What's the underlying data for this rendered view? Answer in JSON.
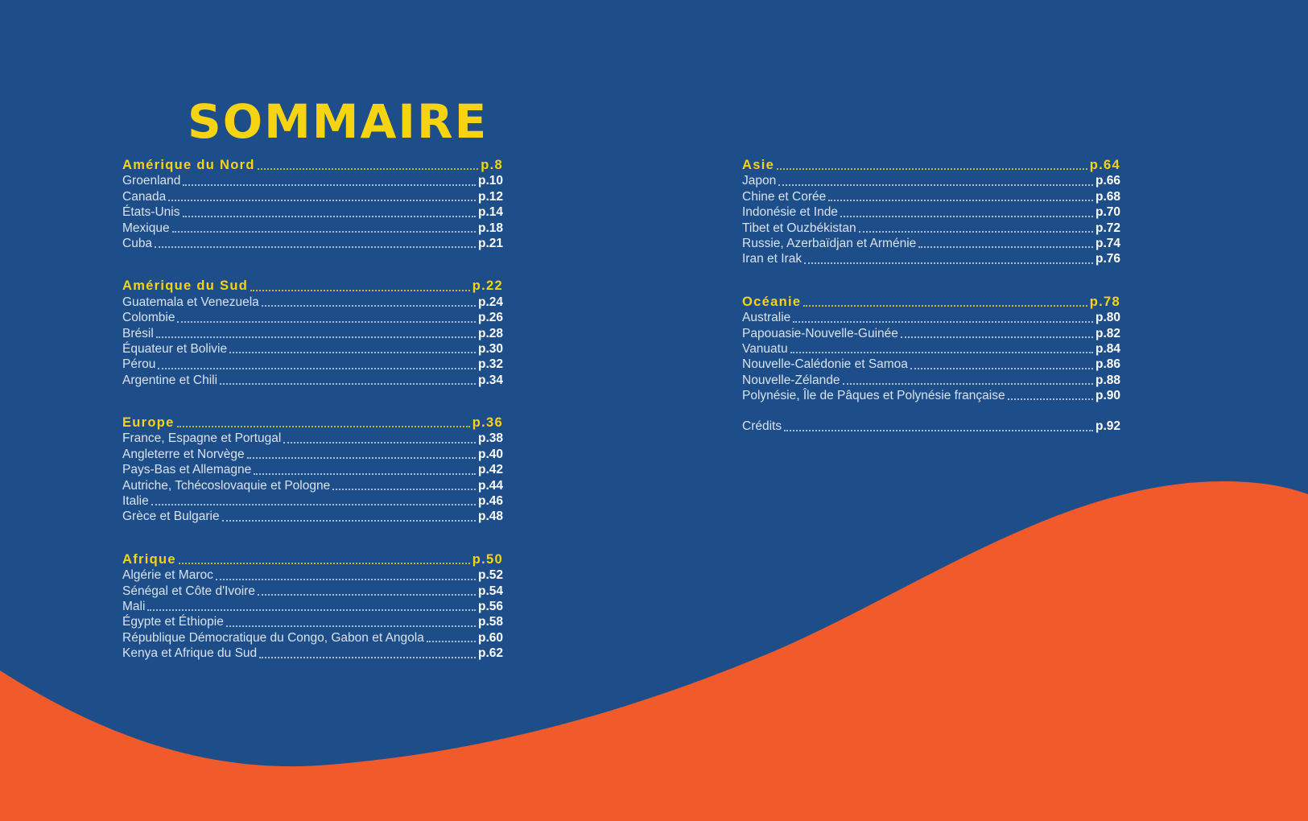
{
  "page": {
    "background_color": "#1d4e89",
    "wave_color": "#f15a2b",
    "accent_yellow": "#f7d412",
    "item_text_color": "#d9e2ee",
    "page_number_color": "#ffffff"
  },
  "title": "SOMMAIRE",
  "toc": {
    "left_sections": [
      {
        "title": "Amérique du Nord",
        "page": "p.8",
        "items": [
          {
            "label": "Groenland",
            "page": "p.10"
          },
          {
            "label": "Canada",
            "page": "p.12"
          },
          {
            "label": "États-Unis",
            "page": "p.14"
          },
          {
            "label": "Mexique",
            "page": "p.18"
          },
          {
            "label": "Cuba",
            "page": "p.21"
          }
        ]
      },
      {
        "title": "Amérique du Sud",
        "page": "p.22",
        "items": [
          {
            "label": "Guatemala et Venezuela",
            "page": "p.24"
          },
          {
            "label": "Colombie",
            "page": "p.26"
          },
          {
            "label": "Brésil",
            "page": "p.28"
          },
          {
            "label": "Équateur et Bolivie",
            "page": "p.30"
          },
          {
            "label": "Pérou",
            "page": "p.32"
          },
          {
            "label": "Argentine et Chili",
            "page": "p.34"
          }
        ]
      },
      {
        "title": "Europe",
        "page": "p.36",
        "items": [
          {
            "label": "France, Espagne et Portugal",
            "page": "p.38"
          },
          {
            "label": "Angleterre et Norvège",
            "page": "p.40"
          },
          {
            "label": "Pays-Bas et Allemagne",
            "page": "p.42"
          },
          {
            "label": "Autriche, Tchécoslovaquie et Pologne",
            "page": "p.44"
          },
          {
            "label": "Italie",
            "page": "p.46"
          },
          {
            "label": "Grèce et Bulgarie",
            "page": "p.48"
          }
        ]
      },
      {
        "title": "Afrique",
        "page": "p.50",
        "items": [
          {
            "label": "Algérie et Maroc",
            "page": "p.52"
          },
          {
            "label": "Sénégal et Côte d'Ivoire",
            "page": "p.54"
          },
          {
            "label": "Mali",
            "page": "p.56"
          },
          {
            "label": "Égypte et Éthiopie",
            "page": "p.58"
          },
          {
            "label": "République Démocratique du Congo, Gabon et Angola",
            "page": "p.60"
          },
          {
            "label": "Kenya et Afrique du Sud",
            "page": "p.62"
          }
        ]
      }
    ],
    "right_sections": [
      {
        "title": "Asie",
        "page": "p.64",
        "items": [
          {
            "label": "Japon",
            "page": "p.66"
          },
          {
            "label": "Chine et Corée",
            "page": "p.68"
          },
          {
            "label": "Indonésie et Inde",
            "page": "p.70"
          },
          {
            "label": "Tibet et Ouzbékistan",
            "page": "p.72"
          },
          {
            "label": "Russie, Azerbaïdjan et Arménie",
            "page": "p.74"
          },
          {
            "label": "Iran et Irak",
            "page": "p.76"
          }
        ]
      },
      {
        "title": "Océanie",
        "page": "p.78",
        "items": [
          {
            "label": "Australie",
            "page": "p.80"
          },
          {
            "label": "Papouasie-Nouvelle-Guinée",
            "page": "p.82"
          },
          {
            "label": "Vanuatu",
            "page": "p.84"
          },
          {
            "label": "Nouvelle-Calédonie et Samoa",
            "page": "p.86"
          },
          {
            "label": "Nouvelle-Zélande",
            "page": "p.88"
          },
          {
            "label": "Polynésie, Île de Pâques et Polynésie française",
            "page": "p.90"
          }
        ]
      }
    ],
    "credits": {
      "label": "Crédits",
      "page": "p.92"
    }
  }
}
